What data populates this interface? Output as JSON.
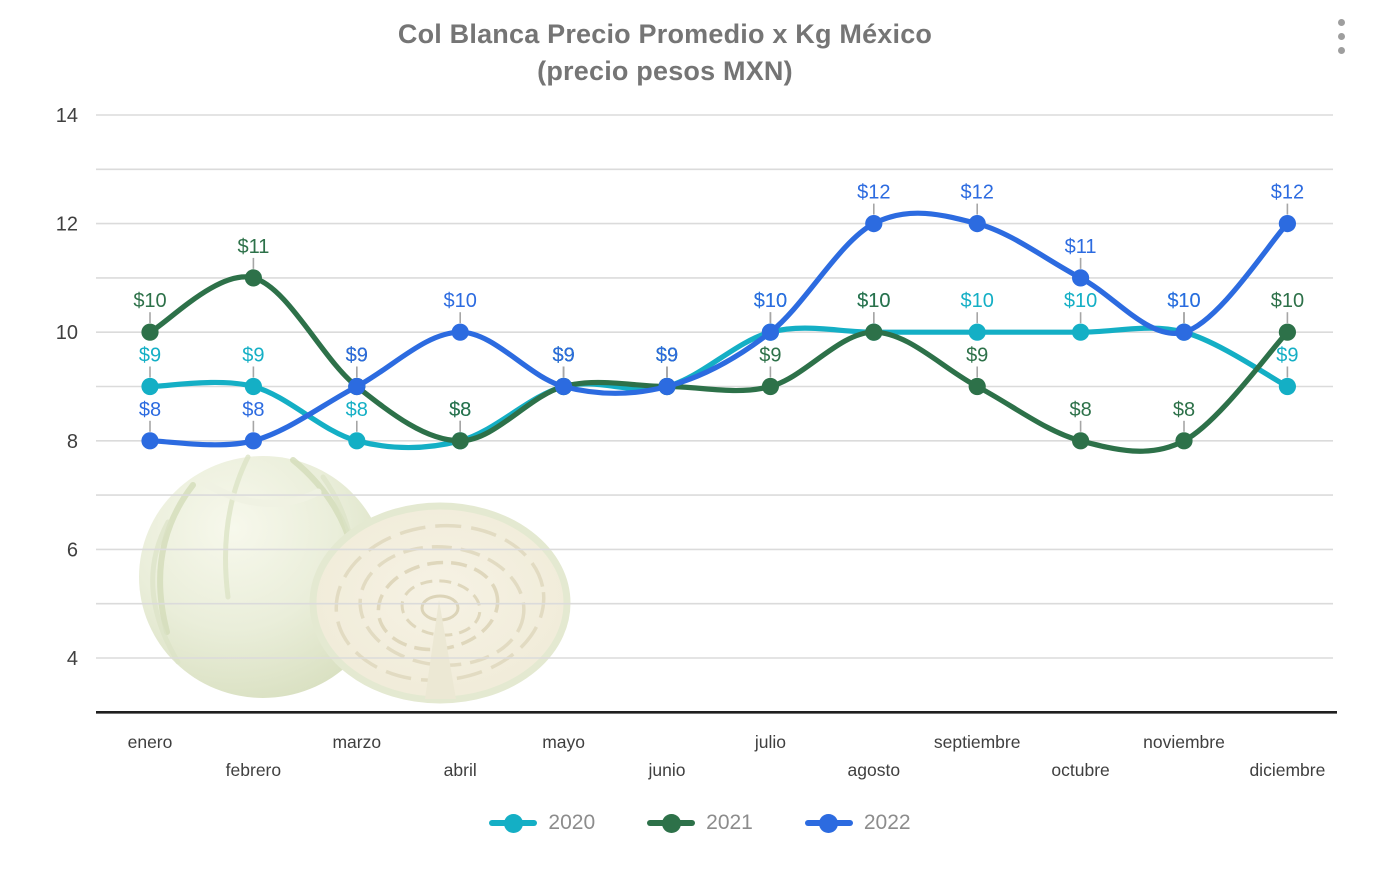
{
  "title": {
    "line1": "Col Blanca Precio Promedio x Kg México",
    "line2": "(precio pesos MXN)"
  },
  "menu": {
    "more_options_icon": "kebab-vertical-dots"
  },
  "chart_data": {
    "type": "line",
    "title": "Col Blanca Precio Promedio x Kg México (precio pesos MXN)",
    "categories": [
      "enero",
      "febrero",
      "marzo",
      "abril",
      "mayo",
      "junio",
      "julio",
      "agosto",
      "septiembre",
      "octubre",
      "noviembre",
      "diciembre"
    ],
    "series": [
      {
        "name": "2020",
        "color": "#14AFC5",
        "values": [
          9,
          9,
          8,
          8,
          9,
          9,
          10,
          10,
          10,
          10,
          10,
          9
        ]
      },
      {
        "name": "2021",
        "color": "#2D7149",
        "values": [
          10,
          11,
          9,
          8,
          9,
          9,
          9,
          10,
          9,
          8,
          8,
          10
        ]
      },
      {
        "name": "2022",
        "color": "#2C6BE0",
        "values": [
          8,
          8,
          9,
          10,
          9,
          9,
          10,
          12,
          12,
          11,
          10,
          12
        ]
      }
    ],
    "ylim": [
      3,
      14
    ],
    "yticks": [
      4,
      6,
      8,
      10,
      12,
      14
    ],
    "grid": "horizontal every 1 unit",
    "smooth": true,
    "markers": true,
    "data_label_prefix": "$",
    "x_axis_style": "staggered two rows",
    "legend_position": "bottom"
  },
  "legend": {
    "items": [
      "2020",
      "2021",
      "2022"
    ]
  },
  "colors": {
    "background": "#FFFFFF",
    "title_text": "#757575",
    "axis_text": "#3F3F3F",
    "legend_text": "#8C8C8C",
    "gridline": "#DBDBDB",
    "axis_line": "#1F1F1F",
    "label_leader_line": "#A6A6A6",
    "menu_dots": "#9E9E9E"
  },
  "decoration": {
    "image": "two white cabbages (one whole, one halved) in lower-left plot area"
  }
}
